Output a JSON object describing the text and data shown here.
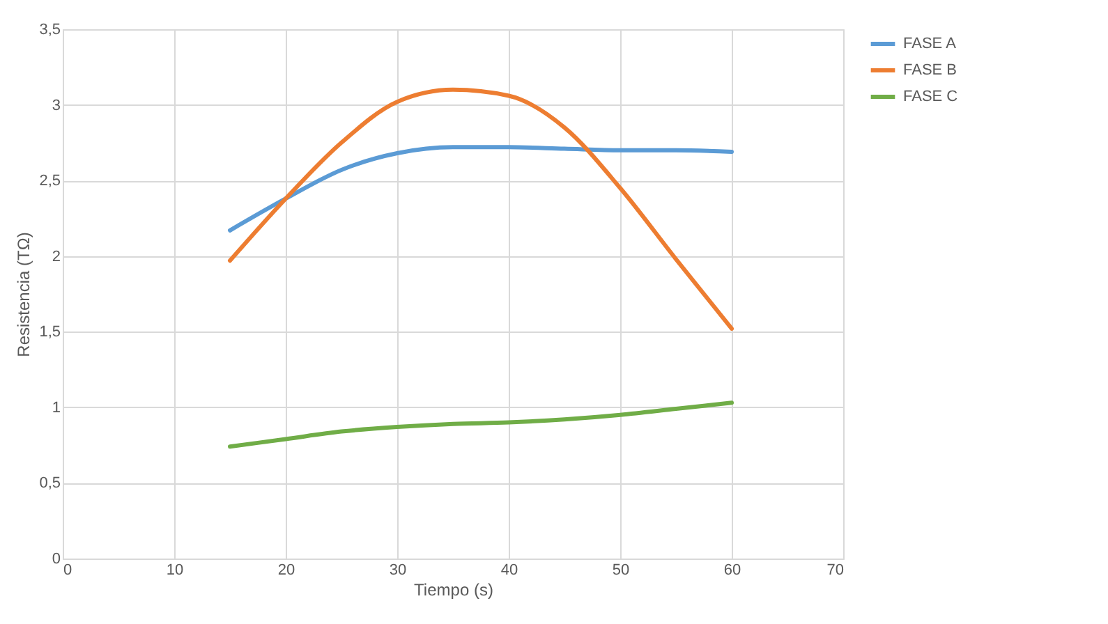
{
  "chart_data": {
    "type": "line",
    "xlabel": "Tiempo (s)",
    "ylabel": "Resistencia (TΩ)",
    "xlim": [
      0,
      70
    ],
    "xticks": [
      0,
      10,
      20,
      30,
      40,
      50,
      60,
      70
    ],
    "ylim": [
      0,
      3.5
    ],
    "yticks": [
      0,
      {
        "value": 0.5,
        "label": "0,5"
      },
      1,
      {
        "value": 1.5,
        "label": "1,5"
      },
      2,
      {
        "value": 2.5,
        "label": "2,5"
      },
      3,
      {
        "value": 3.5,
        "label": "3,5"
      }
    ],
    "grid": true,
    "legend": "right",
    "marker": "none",
    "line_style": "solid",
    "x": [
      15,
      20,
      25,
      30,
      35,
      40,
      45,
      50,
      55,
      60
    ],
    "series": [
      {
        "name": "FASE A",
        "color": "#5b9bd5",
        "values": [
          2.17,
          2.38,
          2.57,
          2.68,
          2.72,
          2.72,
          2.71,
          2.7,
          2.7,
          2.69
        ]
      },
      {
        "name": "FASE B",
        "color": "#ed7d31",
        "values": [
          1.97,
          2.38,
          2.75,
          3.02,
          3.1,
          3.06,
          2.85,
          2.45,
          1.98,
          1.52
        ]
      },
      {
        "name": "FASE C",
        "color": "#70ad47",
        "values": [
          0.74,
          0.79,
          0.84,
          0.87,
          0.89,
          0.9,
          0.92,
          0.95,
          0.99,
          1.03
        ]
      }
    ]
  }
}
